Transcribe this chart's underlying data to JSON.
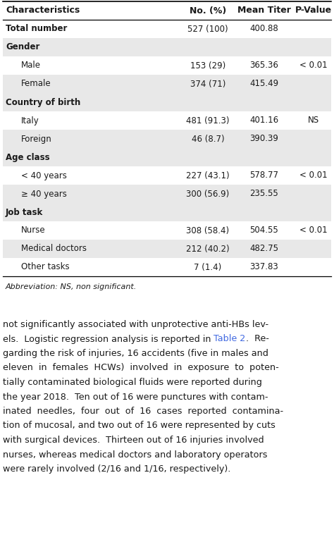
{
  "rows": [
    {
      "label": "Characteristics",
      "no": "No. (%)",
      "titer": "Mean Titer",
      "pval": "P-Value",
      "type": "header",
      "indent": 0
    },
    {
      "label": "Total number",
      "no": "527 (100)",
      "titer": "400.88",
      "pval": "",
      "type": "bold",
      "indent": 0
    },
    {
      "label": "Gender",
      "no": "",
      "titer": "",
      "pval": "",
      "type": "section",
      "indent": 0
    },
    {
      "label": "Male",
      "no": "153 (29)",
      "titer": "365.36",
      "pval": "< 0.01",
      "type": "data",
      "indent": 1
    },
    {
      "label": "Female",
      "no": "374 (71)",
      "titer": "415.49",
      "pval": "",
      "type": "data",
      "indent": 1
    },
    {
      "label": "Country of birth",
      "no": "",
      "titer": "",
      "pval": "",
      "type": "section",
      "indent": 0
    },
    {
      "label": "Italy",
      "no": "481 (91.3)",
      "titer": "401.16",
      "pval": "NS",
      "type": "data",
      "indent": 1
    },
    {
      "label": "Foreign",
      "no": "46 (8.7)",
      "titer": "390.39",
      "pval": "",
      "type": "data",
      "indent": 1
    },
    {
      "label": "Age class",
      "no": "",
      "titer": "",
      "pval": "",
      "type": "section",
      "indent": 0
    },
    {
      "label": "< 40 years",
      "no": "227 (43.1)",
      "titer": "578.77",
      "pval": "< 0.01",
      "type": "data",
      "indent": 1
    },
    {
      "label": "≥ 40 years",
      "no": "300 (56.9)",
      "titer": "235.55",
      "pval": "",
      "type": "data",
      "indent": 1
    },
    {
      "label": "Job task",
      "no": "",
      "titer": "",
      "pval": "",
      "type": "section",
      "indent": 0
    },
    {
      "label": "Nurse",
      "no": "308 (58.4)",
      "titer": "504.55",
      "pval": "< 0.01",
      "type": "data",
      "indent": 1
    },
    {
      "label": "Medical doctors",
      "no": "212 (40.2)",
      "titer": "482.75",
      "pval": "",
      "type": "data",
      "indent": 1
    },
    {
      "label": "Other tasks",
      "no": "7 (1.4)",
      "titer": "337.83",
      "pval": "",
      "type": "data",
      "indent": 1
    }
  ],
  "bg_colors": [
    "#ffffff",
    "#ffffff",
    "#e8e8e8",
    "#ffffff",
    "#e8e8e8",
    "#e8e8e8",
    "#ffffff",
    "#e8e8e8",
    "#e8e8e8",
    "#ffffff",
    "#e8e8e8",
    "#e8e8e8",
    "#ffffff",
    "#e8e8e8",
    "#ffffff"
  ],
  "footer": "Abbreviation: NS, non significant.",
  "link_color": "#4169e1",
  "text_color": "#1a1a1a",
  "bg_white": "#ffffff",
  "bg_gray": "#e8e8e8",
  "body_lines": [
    [
      [
        "not significantly associated with unprotective anti-HBs lev-",
        "black"
      ]
    ],
    [
      [
        "els.  Logistic regression analysis is reported in ",
        "black"
      ],
      [
        "Table 2",
        "blue"
      ],
      [
        ".  Re-",
        "black"
      ]
    ],
    [
      [
        "garding the risk of injuries, 16 accidents (five in males and",
        "black"
      ]
    ],
    [
      [
        "eleven  in  females  HCWs)  involved  in  exposure  to  poten-",
        "black"
      ]
    ],
    [
      [
        "tially contaminated biological fluids were reported during",
        "black"
      ]
    ],
    [
      [
        "the year 2018.  Ten out of 16 were punctures with contam-",
        "black"
      ]
    ],
    [
      [
        "inated  needles,  four  out  of  16  cases  reported  contamina-",
        "black"
      ]
    ],
    [
      [
        "tion of mucosal, and two out of 16 were represented by cuts",
        "black"
      ]
    ],
    [
      [
        "with surgical devices.  Thirteen out of 16 injuries involved",
        "black"
      ]
    ],
    [
      [
        "nurses, whereas medical doctors and laboratory operators",
        "black"
      ]
    ],
    [
      [
        "were rarely involved (2/16 and 1/16, respectively).",
        "black"
      ]
    ]
  ]
}
